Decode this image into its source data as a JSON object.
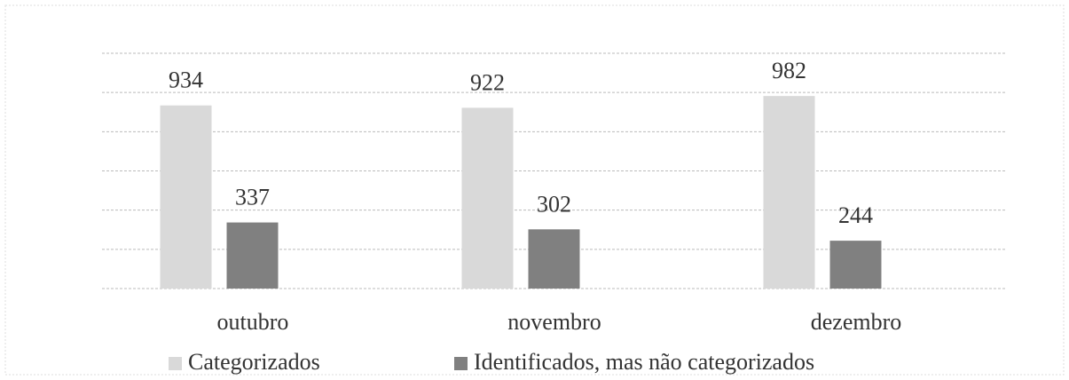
{
  "chart_data": {
    "type": "bar",
    "categories": [
      "outubro",
      "novembro",
      "dezembro"
    ],
    "series": [
      {
        "name": "Categorizados",
        "color": "#d9d9d9",
        "values": [
          934,
          922,
          982
        ]
      },
      {
        "name": "Identificados, mas não categorizados",
        "color": "#808080",
        "values": [
          337,
          302,
          244
        ]
      }
    ],
    "ylim": [
      0,
      1200
    ],
    "yticks": [
      0,
      200,
      400,
      600,
      800,
      1000,
      1200
    ],
    "grid": true,
    "legend": "bottom"
  }
}
